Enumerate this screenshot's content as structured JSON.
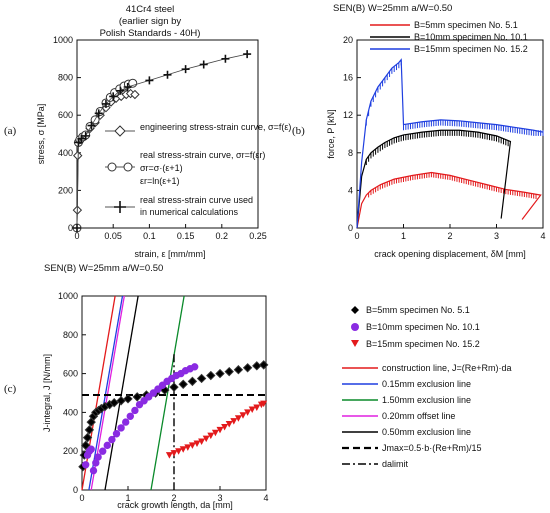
{
  "panel_labels": [
    "(a)",
    "(b)",
    "(c)"
  ],
  "chart_data": [
    {
      "type": "line",
      "panel": "(a)",
      "title": "41Cr4 steel\n(earlier sign by\nPolish Standards - 40H)",
      "xlabel": "strain, ε [mm/mm]",
      "ylabel": "stress, σ [MPa]",
      "xlim": [
        0,
        0.25
      ],
      "ylim": [
        0,
        1000
      ],
      "xticks": [
        "0",
        "0.05",
        "0.1",
        "0.15",
        "0.2",
        "0.25"
      ],
      "yticks": [
        "0",
        "200",
        "400",
        "600",
        "800",
        "1000"
      ],
      "footer": "SEN(B)  W=25mm  a/W=0.50",
      "legend": [
        "engineering stress-strain curve, σ=f(ε)",
        "real stress-strain curve, σr=f(εr)",
        "σr=σ·(ε+1)",
        "εr=ln(ε+1)",
        "real stress-strain curve used in numerical calculations"
      ],
      "series": [
        {
          "name": "engineering stress-strain curve, σ=f(ε)",
          "marker": "diamond",
          "x": [
            0,
            0.0005,
            0.001,
            0.002,
            0.004,
            0.008,
            0.012,
            0.018,
            0.025,
            0.032,
            0.04,
            0.047,
            0.054,
            0.061,
            0.068,
            0.074,
            0.08
          ],
          "y": [
            0,
            95,
            385,
            455,
            470,
            480,
            490,
            530,
            560,
            600,
            640,
            670,
            690,
            700,
            710,
            715,
            710
          ]
        },
        {
          "name": "real stress-strain curve, σr=f(εr)",
          "marker": "circle",
          "x": [
            0,
            0.002,
            0.004,
            0.008,
            0.012,
            0.018,
            0.025,
            0.032,
            0.04,
            0.046,
            0.052,
            0.059,
            0.065,
            0.071,
            0.077
          ],
          "y": [
            0,
            455,
            470,
            485,
            495,
            540,
            575,
            620,
            665,
            695,
            720,
            740,
            755,
            765,
            770
          ]
        },
        {
          "name": "real stress-strain curve used in numerical calculations",
          "marker": "plus",
          "x": [
            0,
            0.002,
            0.006,
            0.012,
            0.02,
            0.03,
            0.04,
            0.05,
            0.06,
            0.07,
            0.1,
            0.125,
            0.15,
            0.175,
            0.205,
            0.235
          ],
          "y": [
            0,
            455,
            475,
            490,
            545,
            610,
            660,
            700,
            730,
            750,
            785,
            815,
            845,
            870,
            900,
            925
          ]
        }
      ]
    },
    {
      "type": "line",
      "panel": "(b)",
      "title": "SEN(B)  W=25mm   a/W=0.50",
      "xlabel": "crack opening displacement, δM [mm]",
      "ylabel": "force, P [kN]",
      "xlim": [
        0,
        4
      ],
      "ylim": [
        0,
        20
      ],
      "xticks": [
        "0",
        "1",
        "2",
        "3",
        "4"
      ],
      "yticks": [
        "0",
        "4",
        "8",
        "12",
        "16",
        "20"
      ],
      "legend": [
        "B=5mm specimen No. 5.1",
        "B=10mm specimen No. 10.1",
        "B=15mm specimen No. 15.2"
      ],
      "series": [
        {
          "name": "B=5mm specimen No. 5.1",
          "color": "#e31a1c",
          "x": [
            0,
            0.1,
            0.2,
            0.3,
            0.5,
            0.8,
            1.2,
            1.6,
            2.0,
            2.4,
            2.8,
            3.2,
            3.6,
            3.95,
            3.55
          ],
          "y": [
            0,
            2.6,
            3.5,
            4.0,
            4.6,
            5.2,
            5.6,
            5.9,
            5.6,
            5.1,
            4.6,
            4.1,
            3.8,
            3.5,
            0.9
          ],
          "serrations": [
            0.25,
            3.85,
            0.5
          ]
        },
        {
          "name": "B=10mm specimen No. 10.1",
          "color": "#000000",
          "x": [
            0,
            0.1,
            0.2,
            0.3,
            0.45,
            0.6,
            0.8,
            1.0,
            1.4,
            1.8,
            2.2,
            2.6,
            3.0,
            3.3,
            3.1
          ],
          "y": [
            0,
            5.5,
            7.3,
            8.0,
            8.6,
            9.1,
            9.6,
            9.9,
            10.2,
            10.4,
            10.4,
            10.2,
            9.8,
            9.2,
            1.0
          ],
          "serrations": [
            0.2,
            3.25,
            0.6
          ]
        },
        {
          "name": "B=15mm specimen No. 15.2",
          "color": "#1f3fe0",
          "x": [
            0,
            0.1,
            0.2,
            0.3,
            0.45,
            0.6,
            0.75,
            0.9,
            0.95,
            1.0,
            1.4,
            1.8,
            2.2,
            2.6,
            3.0,
            3.4,
            3.8,
            4.0
          ],
          "y": [
            0,
            7.0,
            11.5,
            13.5,
            15.0,
            16.0,
            17.0,
            17.6,
            17.9,
            11.0,
            11.3,
            11.5,
            11.4,
            11.2,
            11.0,
            10.7,
            10.4,
            10.2
          ],
          "serrations": [
            0.2,
            4.0,
            0.6
          ]
        }
      ]
    },
    {
      "type": "scatter",
      "panel": "(c)",
      "xlabel": "crack growth length, da [mm]",
      "ylabel": "J-integral, J [N/mm]",
      "xlim": [
        0,
        4
      ],
      "ylim": [
        0,
        1000
      ],
      "xticks": [
        "0",
        "1",
        "2",
        "3",
        "4"
      ],
      "yticks": [
        "0",
        "200",
        "400",
        "600",
        "800",
        "1000"
      ],
      "legend_markers": [
        "B=5mm specimen No. 5.1",
        "B=10mm specimen No. 10.1",
        "B=15mm specimen No. 15.2"
      ],
      "legend_lines": [
        "construction line, J=(Re+Rm)·da",
        "0.15mm exclusion line",
        "1.50mm exclusion line",
        "0.20mm offset line",
        "0.50mm exclusion line",
        "Jmax=0.5·b·(Re+Rm)/15",
        "dalimit"
      ],
      "series": [
        {
          "name": "B=5mm specimen No. 5.1",
          "marker": "diamond",
          "color": "#000000",
          "x": [
            0.02,
            0.05,
            0.08,
            0.12,
            0.16,
            0.2,
            0.25,
            0.3,
            0.36,
            0.42,
            0.5,
            0.6,
            0.7,
            0.85,
            1.0,
            1.2,
            1.4,
            1.6,
            1.8,
            2.0,
            2.2,
            2.4,
            2.6,
            2.8,
            3.0,
            3.2,
            3.4,
            3.6,
            3.8,
            3.95
          ],
          "y": [
            120,
            180,
            230,
            270,
            310,
            350,
            380,
            400,
            410,
            420,
            430,
            440,
            450,
            460,
            470,
            480,
            490,
            500,
            515,
            530,
            545,
            560,
            575,
            590,
            600,
            610,
            620,
            630,
            640,
            645
          ]
        },
        {
          "name": "B=10mm specimen No. 10.1",
          "marker": "circle",
          "color": "#8a2be2",
          "x": [
            0.08,
            0.12,
            0.16,
            0.2,
            0.25,
            0.3,
            0.35,
            0.45,
            0.55,
            0.65,
            0.75,
            0.85,
            0.95,
            1.05,
            1.15,
            1.25,
            1.35,
            1.45,
            1.55,
            1.65,
            1.75,
            1.85,
            1.95,
            2.05,
            2.15,
            2.25,
            2.35,
            2.45
          ],
          "y": [
            130,
            180,
            200,
            210,
            100,
            140,
            170,
            200,
            230,
            260,
            290,
            320,
            350,
            380,
            410,
            440,
            460,
            480,
            500,
            520,
            540,
            560,
            575,
            590,
            600,
            615,
            625,
            635
          ]
        },
        {
          "name": "B=15mm specimen No. 15.2",
          "marker": "triangle",
          "color": "#e31a1c",
          "x": [
            1.9,
            2.0,
            2.1,
            2.2,
            2.3,
            2.4,
            2.5,
            2.6,
            2.7,
            2.8,
            2.9,
            3.0,
            3.1,
            3.2,
            3.3,
            3.4,
            3.5,
            3.6,
            3.7,
            3.8,
            3.9,
            3.95
          ],
          "y": [
            180,
            190,
            200,
            210,
            220,
            230,
            240,
            250,
            265,
            280,
            295,
            310,
            325,
            340,
            355,
            370,
            385,
            400,
            415,
            425,
            440,
            445
          ]
        }
      ],
      "lines": [
        {
          "name": "construction line, J=(Re+Rm)·da",
          "color": "#e31a1c",
          "x": [
            0,
            0.72
          ],
          "y": [
            0,
            1000
          ]
        },
        {
          "name": "0.15mm exclusion line",
          "color": "#1f3fe0",
          "x": [
            0.15,
            0.88
          ],
          "y": [
            0,
            1000
          ]
        },
        {
          "name": "1.50mm exclusion line",
          "color": "#0a8a2a",
          "x": [
            1.5,
            2.22
          ],
          "y": [
            0,
            1000
          ]
        },
        {
          "name": "0.20mm offset line",
          "color": "#e020e0",
          "x": [
            0.2,
            0.92
          ],
          "y": [
            0,
            1000
          ]
        },
        {
          "name": "0.50mm exclusion line",
          "color": "#000000",
          "x": [
            0.5,
            1.22
          ],
          "y": [
            0,
            1000
          ]
        }
      ],
      "jmax": 490,
      "dalimit": 2.0
    }
  ]
}
